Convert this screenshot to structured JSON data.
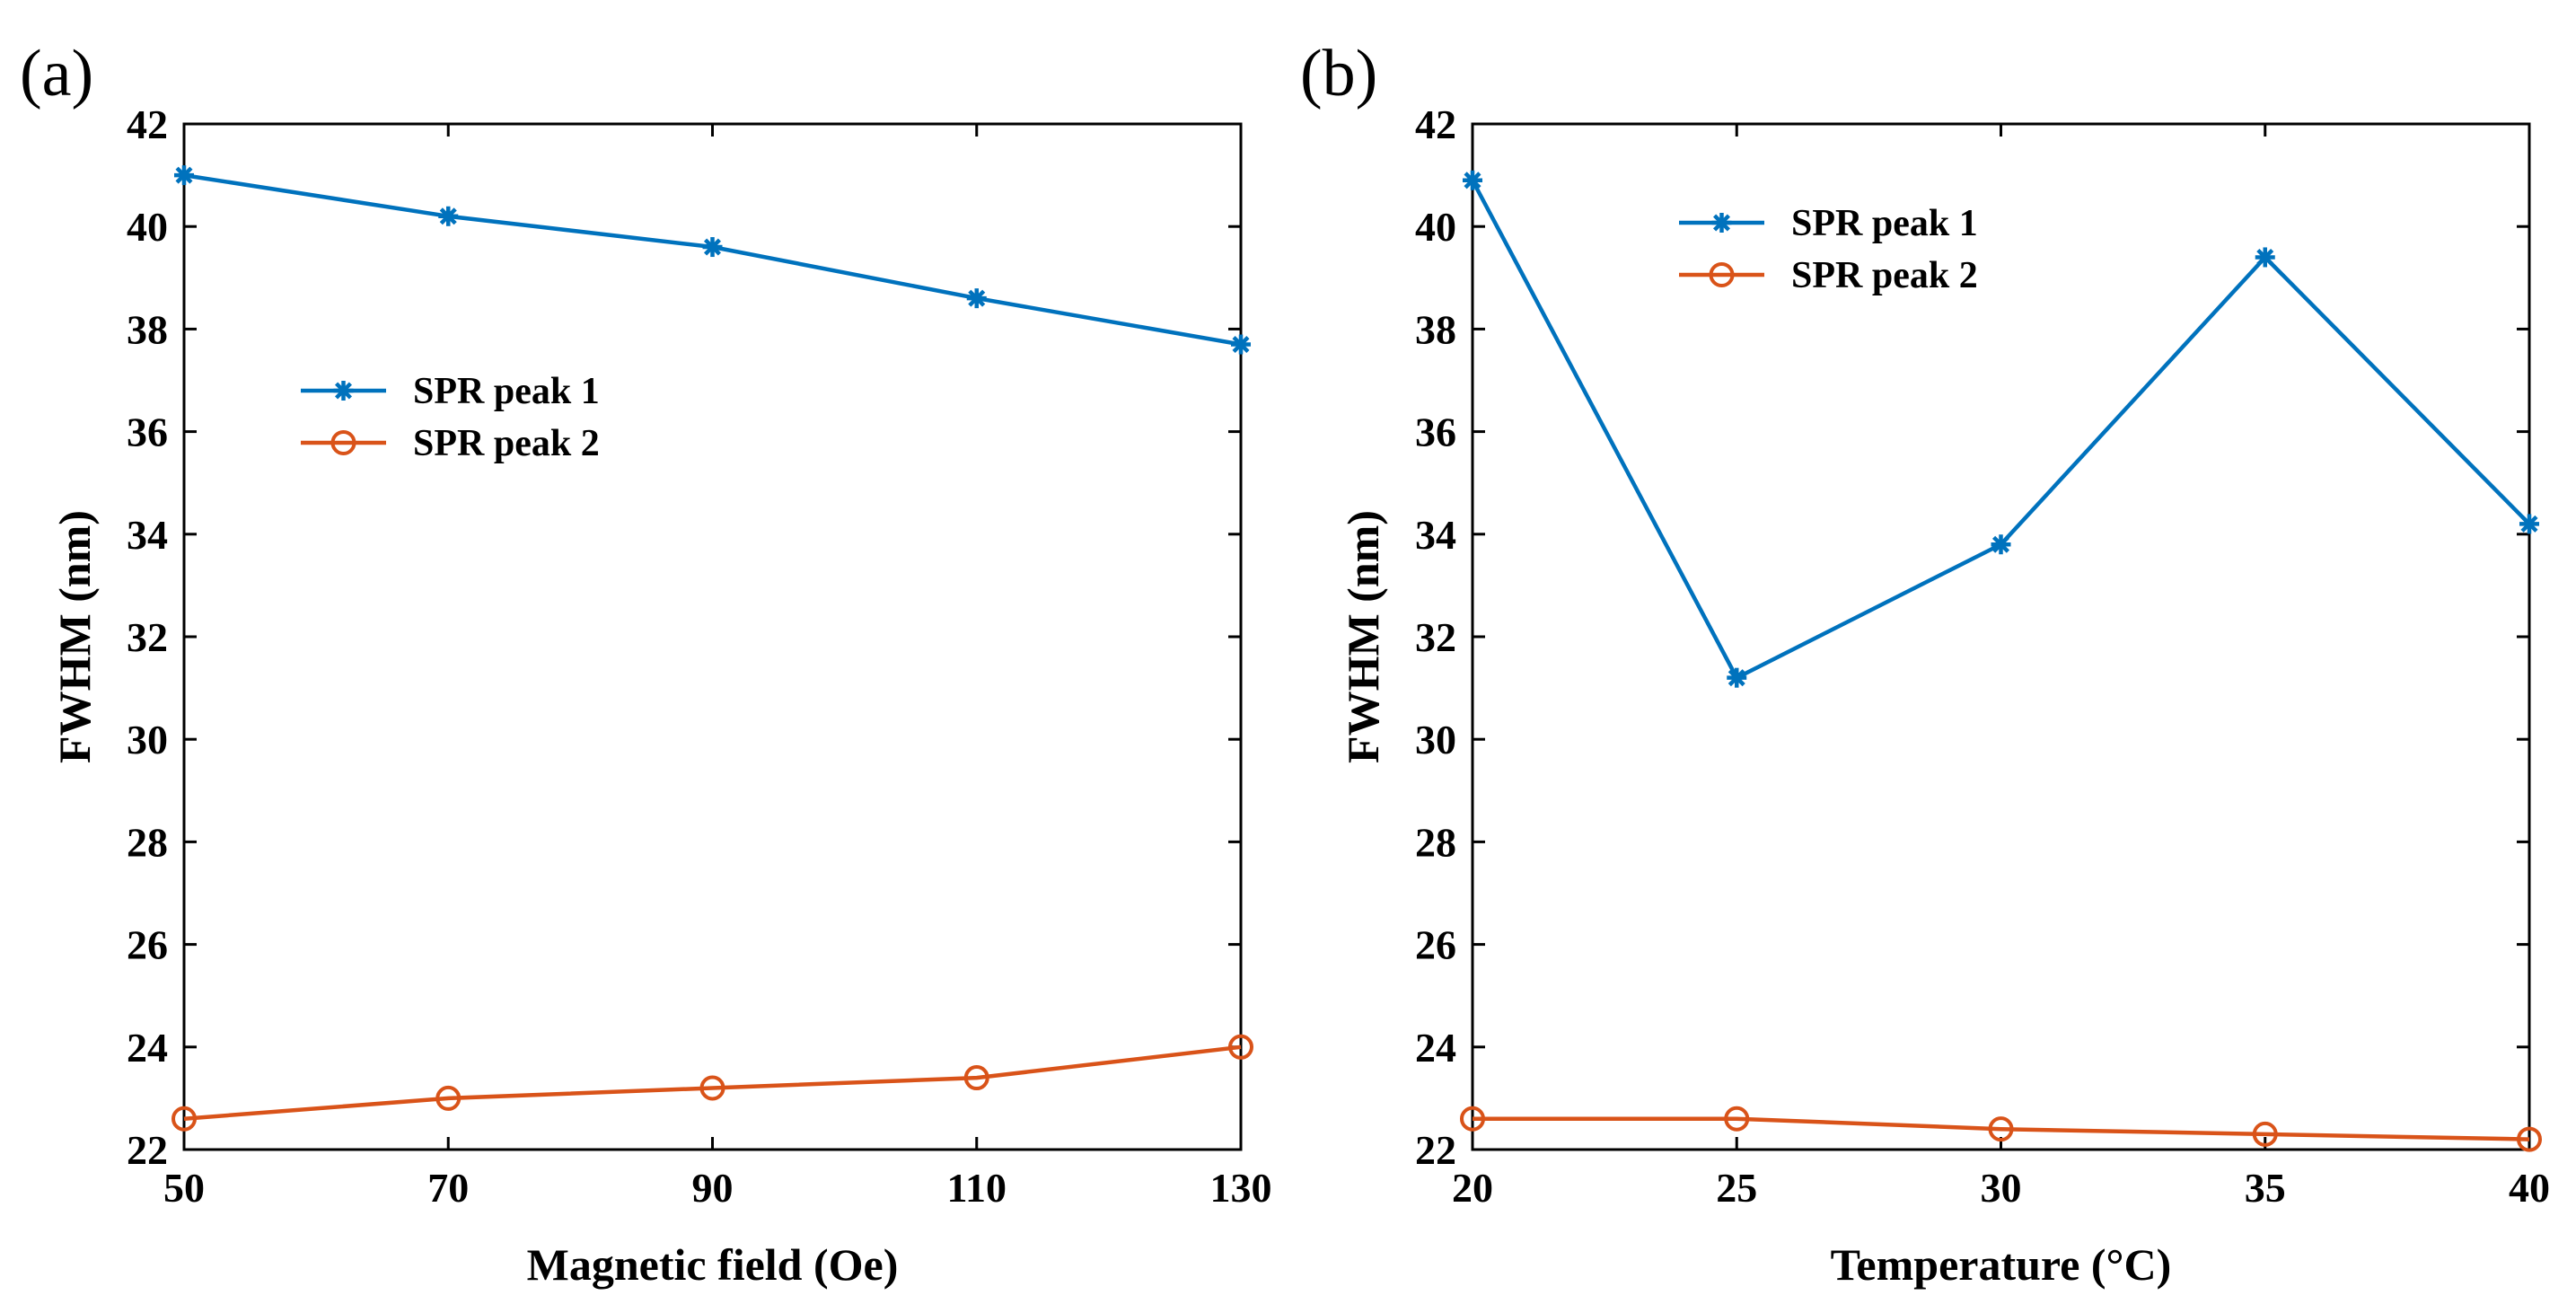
{
  "chart_data": [
    {
      "type": "line",
      "panel_label": "(a)",
      "xlabel": "Magnetic field (Oe)",
      "ylabel": "FWHM (nm)",
      "x": [
        50,
        70,
        90,
        110,
        130
      ],
      "xlim": [
        50,
        130
      ],
      "xticks": [
        "50",
        "70",
        "90",
        "110",
        "130"
      ],
      "ylim": [
        22,
        42
      ],
      "yticks": [
        "22",
        "24",
        "26",
        "28",
        "30",
        "32",
        "34",
        "36",
        "38",
        "40",
        "42"
      ],
      "grid": false,
      "legend_position": "center-left",
      "series": [
        {
          "name": "SPR peak 1",
          "color": "#0072BD",
          "marker": "asterisk",
          "values": [
            41.0,
            40.2,
            39.6,
            38.6,
            37.7
          ]
        },
        {
          "name": "SPR peak 2",
          "color": "#D95319",
          "marker": "circle",
          "values": [
            22.6,
            23.0,
            23.2,
            23.4,
            24.0
          ]
        }
      ]
    },
    {
      "type": "line",
      "panel_label": "(b)",
      "xlabel": "Temperature (°C)",
      "ylabel": "FWHM (nm)",
      "x": [
        20,
        25,
        30,
        35,
        40
      ],
      "xlim": [
        20,
        40
      ],
      "xticks": [
        "20",
        "25",
        "30",
        "35",
        "40"
      ],
      "ylim": [
        22,
        42
      ],
      "yticks": [
        "22",
        "24",
        "26",
        "28",
        "30",
        "32",
        "34",
        "36",
        "38",
        "40",
        "42"
      ],
      "grid": false,
      "legend_position": "top-left",
      "series": [
        {
          "name": "SPR peak 1",
          "color": "#0072BD",
          "marker": "asterisk",
          "values": [
            40.9,
            31.2,
            33.8,
            39.4,
            34.2
          ]
        },
        {
          "name": "SPR peak 2",
          "color": "#D95319",
          "marker": "circle",
          "values": [
            22.6,
            22.6,
            22.4,
            22.3,
            22.2
          ]
        }
      ]
    }
  ]
}
